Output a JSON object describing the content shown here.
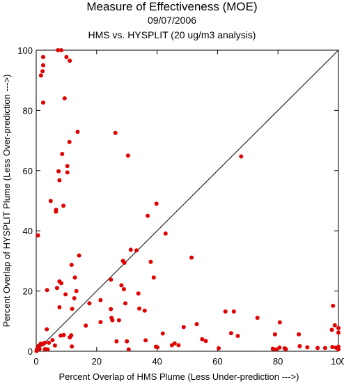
{
  "chart_data": {
    "type": "scatter",
    "title": "Measure of Effectiveness (MOE)",
    "subtitle": "09/07/2006",
    "subtitle2": "HMS vs. HYSPLIT  (20 ug/m3 analysis)",
    "xlabel": "Percent Overlap of HMS Plume (Less Under-prediction --->)",
    "ylabel": "Percent Overlap of HYSPLIT Plume (Less Over-prediction --->)",
    "xlim": [
      0,
      100
    ],
    "ylim": [
      0,
      100
    ],
    "xticks": [
      "0",
      "20",
      "40",
      "60",
      "80",
      "100"
    ],
    "yticks": [
      "0",
      "20",
      "40",
      "60",
      "80",
      "100"
    ],
    "grid": false,
    "diagonal_line": true,
    "point_color": "#e00000",
    "points": [
      [
        7.2,
        100
      ],
      [
        8.3,
        100
      ],
      [
        2.3,
        97.7
      ],
      [
        10.0,
        97.7
      ],
      [
        1.6,
        91.6
      ],
      [
        2.1,
        93.0
      ],
      [
        2.3,
        95.0
      ],
      [
        11.1,
        96.5
      ],
      [
        2.3,
        82.6
      ],
      [
        9.4,
        84.0
      ],
      [
        13.7,
        72.9
      ],
      [
        26.2,
        72.5
      ],
      [
        11.0,
        69.5
      ],
      [
        8.6,
        65.5
      ],
      [
        30.4,
        65.0
      ],
      [
        67.8,
        64.7
      ],
      [
        10.3,
        61.5
      ],
      [
        7.4,
        59.8
      ],
      [
        10.3,
        59.4
      ],
      [
        7.7,
        56.8
      ],
      [
        4.8,
        49.9
      ],
      [
        39.8,
        49.0
      ],
      [
        9.0,
        48.3
      ],
      [
        6.6,
        47.0
      ],
      [
        6.5,
        46.4
      ],
      [
        36.9,
        45.0
      ],
      [
        0.6,
        38.5
      ],
      [
        42.8,
        39.1
      ],
      [
        31.3,
        33.7
      ],
      [
        33.2,
        33.5
      ],
      [
        14.2,
        31.8
      ],
      [
        51.4,
        31.1
      ],
      [
        28.7,
        30.0
      ],
      [
        29.2,
        29.4
      ],
      [
        37.9,
        29.7
      ],
      [
        11.7,
        28.7
      ],
      [
        12.8,
        24.5
      ],
      [
        38.9,
        24.5
      ],
      [
        7.7,
        23.2
      ],
      [
        24.7,
        23.8
      ],
      [
        3.6,
        20.3
      ],
      [
        6.9,
        21.0
      ],
      [
        8.3,
        22.6
      ],
      [
        28.2,
        21.9
      ],
      [
        13.3,
        20.0
      ],
      [
        29.0,
        20.6
      ],
      [
        33.8,
        19.2
      ],
      [
        9.7,
        18.9
      ],
      [
        12.6,
        17.6
      ],
      [
        21.3,
        17.0
      ],
      [
        17.6,
        15.9
      ],
      [
        29.5,
        15.9
      ],
      [
        7.7,
        14.6
      ],
      [
        11.9,
        14.1
      ],
      [
        24.7,
        14.0
      ],
      [
        34.1,
        14.2
      ],
      [
        35.9,
        13.5
      ],
      [
        62.6,
        13.2
      ],
      [
        65.4,
        13.2
      ],
      [
        98.2,
        15.1
      ],
      [
        16.4,
        8.5
      ],
      [
        21.3,
        9.7
      ],
      [
        24.9,
        11.1
      ],
      [
        25.2,
        10.3
      ],
      [
        27.4,
        10.3
      ],
      [
        53.1,
        9.0
      ],
      [
        73.2,
        11.1
      ],
      [
        80.6,
        9.6
      ],
      [
        3.5,
        7.3
      ],
      [
        41.9,
        5.9
      ],
      [
        48.8,
        8.0
      ],
      [
        64.5,
        6.0
      ],
      [
        66.7,
        5.1
      ],
      [
        79.0,
        5.6
      ],
      [
        86.9,
        5.6
      ],
      [
        97.8,
        7.1
      ],
      [
        98.8,
        8.6
      ],
      [
        100.0,
        7.7
      ],
      [
        100.0,
        6.2
      ],
      [
        0.8,
        1.8
      ],
      [
        1.5,
        2.5
      ],
      [
        2.2,
        2.3
      ],
      [
        2.8,
        2.8
      ],
      [
        4.2,
        2.8
      ],
      [
        5.4,
        3.7
      ],
      [
        8.1,
        5.2
      ],
      [
        9.1,
        5.4
      ],
      [
        11.6,
        5.3
      ],
      [
        11.1,
        4.6
      ],
      [
        26.6,
        3.3
      ],
      [
        30.0,
        3.3
      ],
      [
        36.2,
        3.6
      ],
      [
        45.8,
        2.6
      ],
      [
        47.1,
        2.0
      ],
      [
        54.9,
        4.0
      ],
      [
        56.1,
        3.4
      ],
      [
        44.9,
        2.0
      ],
      [
        0.2,
        0.6
      ],
      [
        0.5,
        0.9
      ],
      [
        1.1,
        0.8
      ],
      [
        2.9,
        0.7
      ],
      [
        3.8,
        0.6
      ],
      [
        6.2,
        1.9
      ],
      [
        11.8,
        1.6
      ],
      [
        30.6,
        0.6
      ],
      [
        39.6,
        1.5
      ],
      [
        40.1,
        1.3
      ],
      [
        60.4,
        1.0
      ],
      [
        78.3,
        0.8
      ],
      [
        79.3,
        0.6
      ],
      [
        80.5,
        1.2
      ],
      [
        82.2,
        1.0
      ],
      [
        82.6,
        0.7
      ],
      [
        87.2,
        1.7
      ],
      [
        89.7,
        1.3
      ],
      [
        93.1,
        1.1
      ],
      [
        95.6,
        1.1
      ],
      [
        98.0,
        1.4
      ],
      [
        99.2,
        1.2
      ],
      [
        100.0,
        1.5
      ],
      [
        100.0,
        0.6
      ],
      [
        0.1,
        0.1
      ]
    ]
  }
}
